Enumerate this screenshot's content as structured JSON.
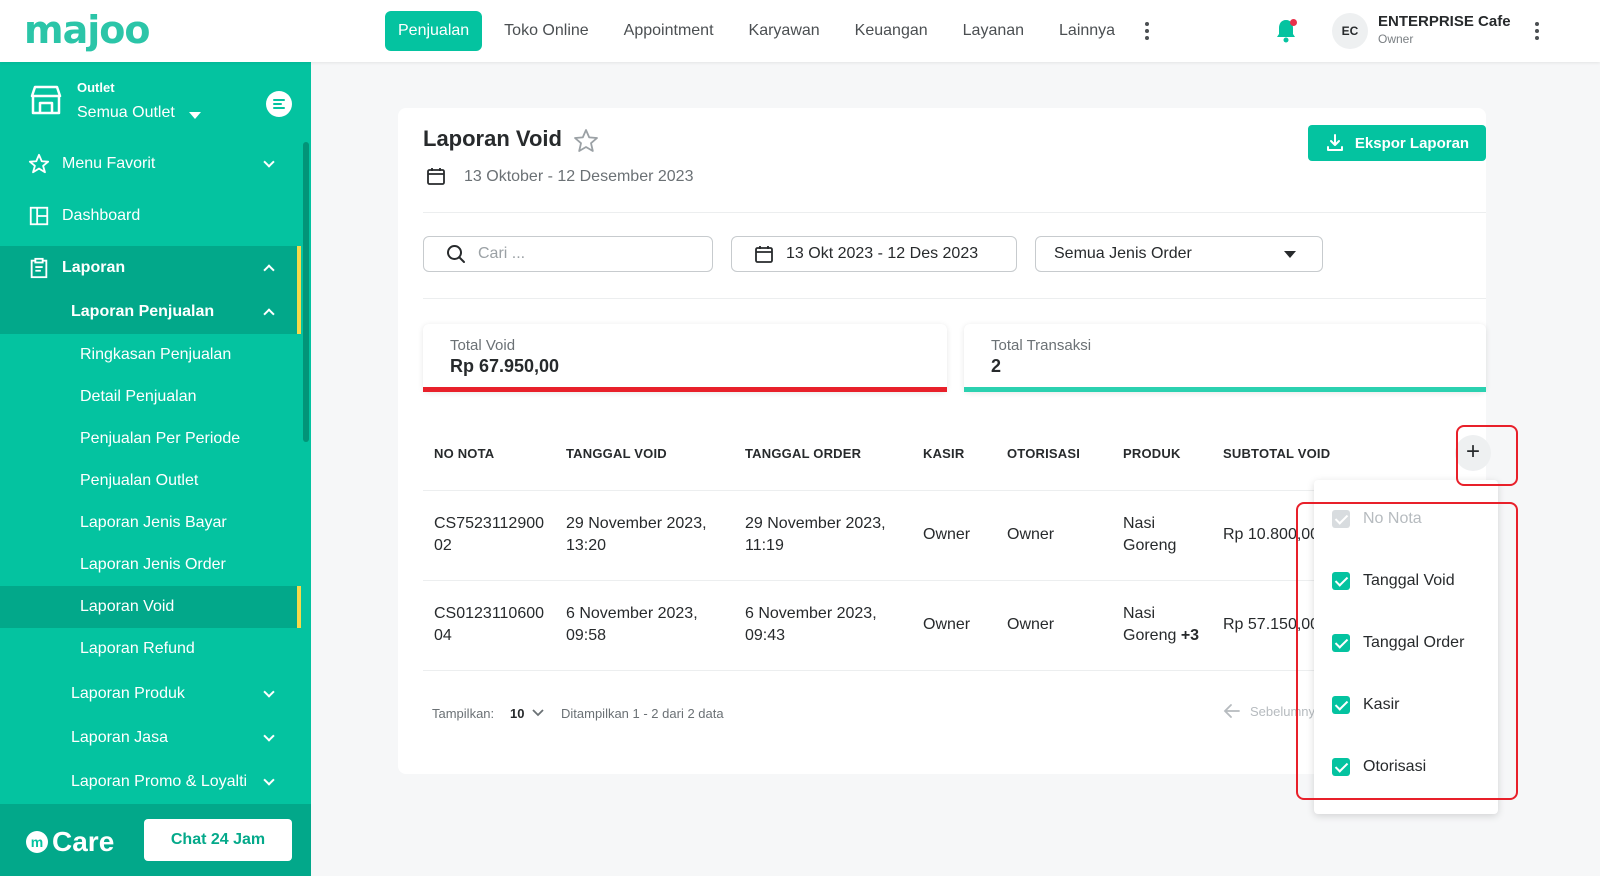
{
  "brand": {
    "logo_text": "majoo"
  },
  "nav": {
    "items": [
      "Penjualan",
      "Toko Online",
      "Appointment",
      "Karyawan",
      "Keuangan",
      "Layanan",
      "Lainnya"
    ],
    "active": "Penjualan"
  },
  "user": {
    "initials": "EC",
    "name": "ENTERPRISE Cafe",
    "role": "Owner"
  },
  "sidebar": {
    "outlet_label": "Outlet",
    "outlet_value": "Semua Outlet",
    "items": {
      "menu_favorit": "Menu Favorit",
      "dashboard": "Dashboard",
      "laporan": "Laporan",
      "laporan_penjualan": "Laporan Penjualan",
      "ringkasan": "Ringkasan Penjualan",
      "detail": "Detail Penjualan",
      "per_periode": "Penjualan Per Periode",
      "outlet": "Penjualan Outlet",
      "jenis_bayar": "Laporan Jenis Bayar",
      "jenis_order": "Laporan Jenis Order",
      "void": "Laporan Void",
      "refund": "Laporan Refund",
      "produk": "Laporan Produk",
      "jasa": "Laporan Jasa",
      "promo": "Laporan Promo & Loyalti"
    },
    "care_text": "Care",
    "care_m": "m",
    "chat_button": "Chat 24 Jam"
  },
  "report": {
    "title": "Laporan Void",
    "date_range": "13 Oktober - 12 Desember 2023",
    "export_button": "Ekspor Laporan",
    "search_placeholder": "Cari ...",
    "date_filter": "13 Okt 2023 - 12 Des 2023",
    "order_type_filter": "Semua Jenis Order",
    "stats": [
      {
        "label": "Total Void",
        "value": "Rp 67.950,00",
        "color": "#e8202a"
      },
      {
        "label": "Total Transaksi",
        "value": "2",
        "color": "#2bd1b0"
      }
    ],
    "columns": [
      "NO NOTA",
      "TANGGAL VOID",
      "TANGGAL ORDER",
      "KASIR",
      "OTORISASI",
      "PRODUK",
      "SUBTOTAL VOID"
    ],
    "add_column_button": "+",
    "rows": [
      {
        "no_nota_1": "CS7523112900",
        "no_nota_2": "02",
        "tanggal_void_1": "29 November 2023,",
        "tanggal_void_2": "13:20",
        "tanggal_order_1": "29 November 2023,",
        "tanggal_order_2": "11:19",
        "kasir": "Owner",
        "otorisasi": "Owner",
        "produk_1": "Nasi",
        "produk_2": "Goreng",
        "produk_extra": "",
        "subtotal": "Rp 10.800,00"
      },
      {
        "no_nota_1": "CS0123110600",
        "no_nota_2": "04",
        "tanggal_void_1": "6 November 2023,",
        "tanggal_void_2": "09:58",
        "tanggal_order_1": "6 November 2023,",
        "tanggal_order_2": "09:43",
        "kasir": "Owner",
        "otorisasi": "Owner",
        "produk_1": "Nasi",
        "produk_2": "Goreng",
        "produk_extra": "+3",
        "subtotal": "Rp 57.150,00"
      }
    ],
    "pagination": {
      "show_label": "Tampilkan:",
      "page_size": "10",
      "summary": "Ditampilkan 1 - 2 dari 2 data",
      "prev": "Sebelumnya"
    }
  },
  "column_menu": {
    "options": [
      {
        "label": "No Nota",
        "checked": true,
        "disabled": true
      },
      {
        "label": "Tanggal Void",
        "checked": true,
        "disabled": false
      },
      {
        "label": "Tanggal Order",
        "checked": true,
        "disabled": false
      },
      {
        "label": "Kasir",
        "checked": true,
        "disabled": false
      },
      {
        "label": "Otorisasi",
        "checked": true,
        "disabled": false
      }
    ]
  },
  "colors": {
    "primary": "#04c3a0",
    "highlight": "#e8202a"
  }
}
